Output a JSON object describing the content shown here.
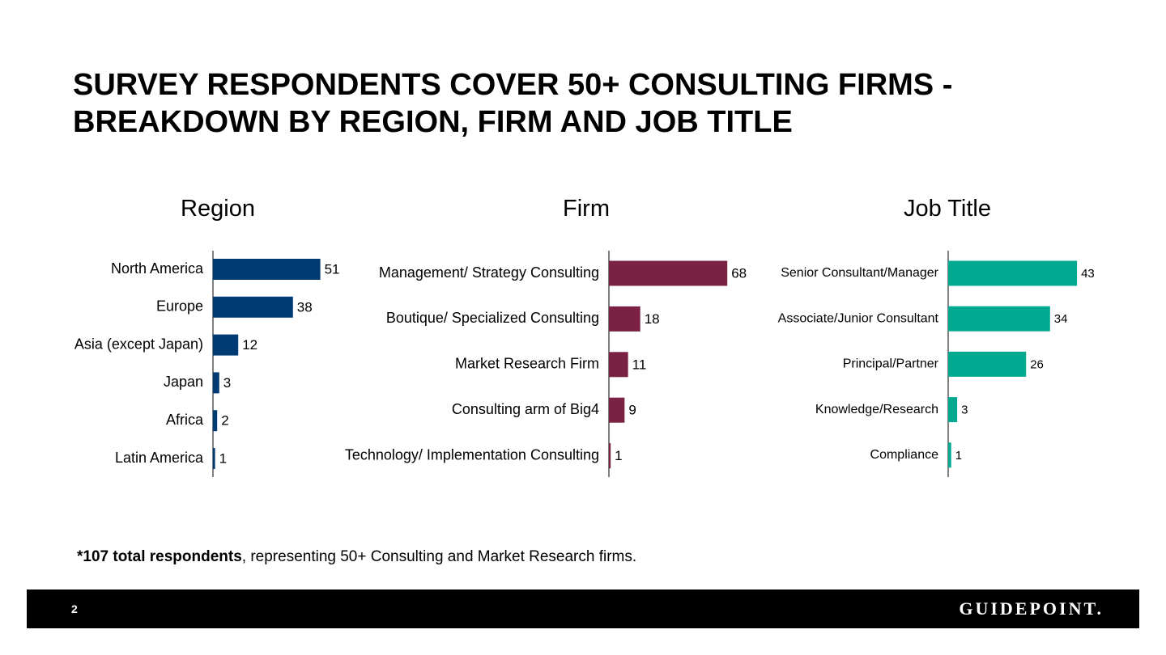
{
  "slide": {
    "title_line1": "SURVEY RESPONDENTS COVER 50+ CONSULTING FIRMS -",
    "title_line2": "BREAKDOWN BY REGION, FIRM AND JOB TITLE"
  },
  "chart_data": [
    {
      "type": "bar",
      "orientation": "horizontal",
      "title": "Region",
      "categories": [
        "North America",
        "Europe",
        "Asia (except Japan)",
        "Japan",
        "Africa",
        "Latin America"
      ],
      "values": [
        51,
        38,
        12,
        3,
        2,
        1
      ],
      "color": "#003B73",
      "grid": false,
      "legend": "none"
    },
    {
      "type": "bar",
      "orientation": "horizontal",
      "title": "Firm",
      "categories": [
        "Management/ Strategy Consulting",
        "Boutique/ Specialized Consulting",
        "Market Research Firm",
        "Consulting arm of Big4",
        "Technology/ Implementation Consulting"
      ],
      "values": [
        68,
        18,
        11,
        9,
        1
      ],
      "color": "#7B2144",
      "grid": false,
      "legend": "none"
    },
    {
      "type": "bar",
      "orientation": "horizontal",
      "title": "Job Title",
      "categories": [
        "Senior Consultant/Manager",
        "Associate/Junior Consultant",
        "Principal/Partner",
        "Knowledge/Research",
        "Compliance"
      ],
      "values": [
        43,
        34,
        26,
        3,
        1
      ],
      "color": "#00A990",
      "grid": false,
      "legend": "none"
    }
  ],
  "footnote": {
    "bold": "*107 total respondents",
    "rest": ", representing 50+ Consulting and Market Research firms."
  },
  "footer": {
    "page_number": "2",
    "logo_text": "GUIDEPOINT."
  }
}
